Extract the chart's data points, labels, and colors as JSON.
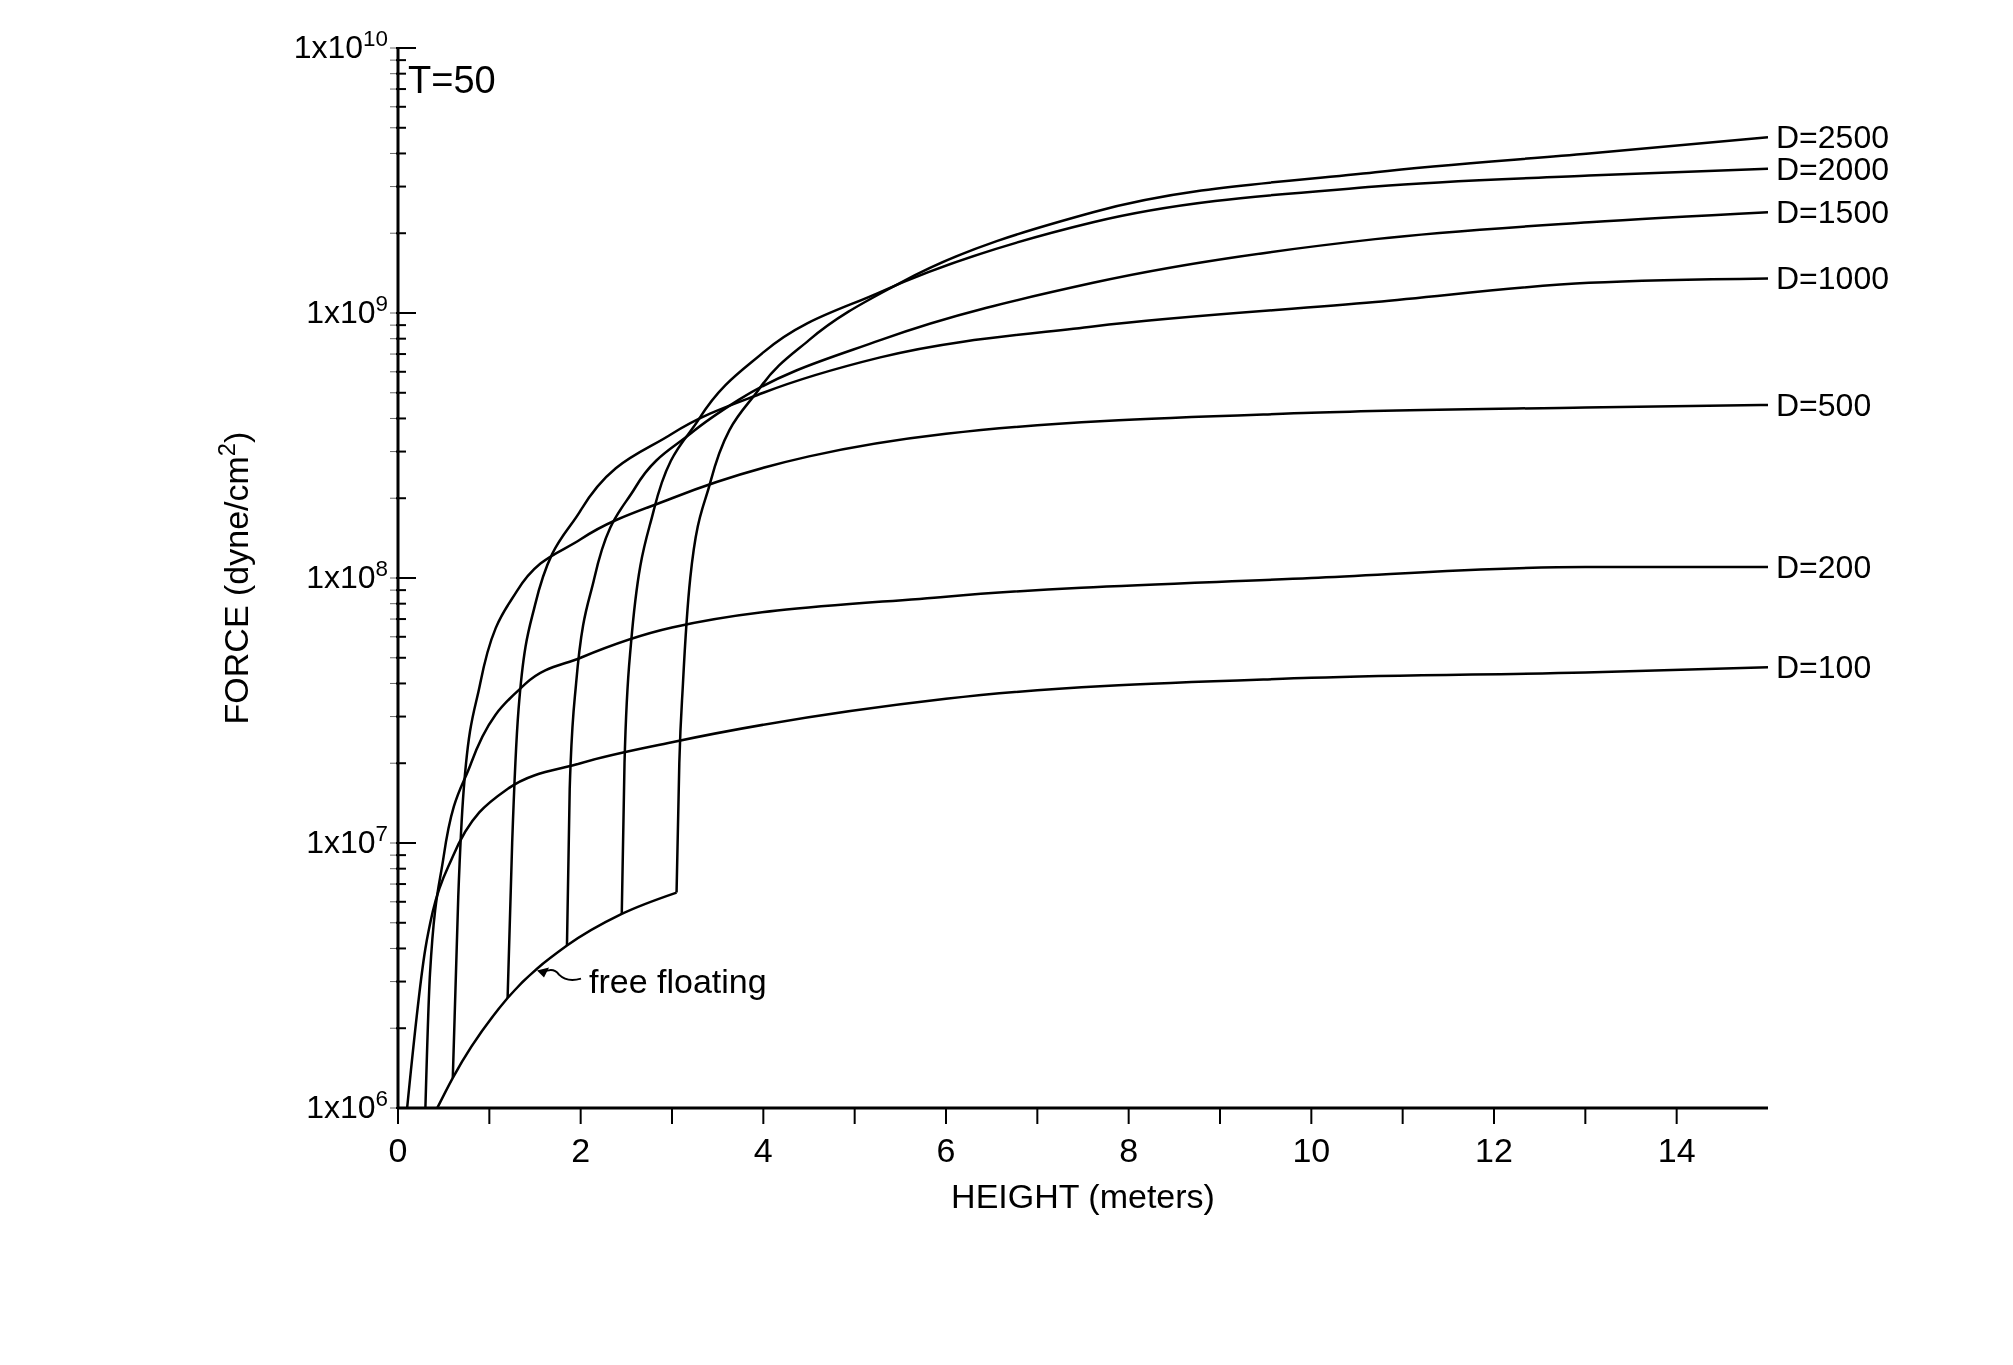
{
  "chart_data": {
    "type": "line",
    "title": "T=50",
    "xlabel": "HEIGHT (meters)",
    "ylabel": "FORCE (dyne/cm$^{2}$)",
    "log": "y",
    "grid": false,
    "annotations": [
      {
        "text": "free floating",
        "x": 1.5,
        "y": 3300000
      }
    ],
    "marker": "none",
    "line_style": "solid",
    "xlim": [
      0,
      15
    ],
    "ylim": [
      1000000,
      10000000000
    ],
    "xticks": [
      0,
      {
        "value": 1,
        "label": null
      },
      2,
      {
        "value": 3,
        "label": null
      },
      4,
      {
        "value": 5,
        "label": null
      },
      6,
      {
        "value": 7,
        "label": null
      },
      8,
      {
        "value": 9,
        "label": null
      },
      10,
      {
        "value": 11,
        "label": null
      },
      12,
      {
        "value": 13,
        "label": null
      },
      14
    ],
    "yticks": [
      {
        "value": 1000000,
        "label": "1x10$^{6}$"
      },
      {
        "value": 2000000,
        "label": null
      },
      {
        "value": 3000000,
        "label": null
      },
      {
        "value": 4000000,
        "label": null
      },
      {
        "value": 5000000,
        "label": null
      },
      {
        "value": 6000000,
        "label": null
      },
      {
        "value": 7000000,
        "label": null
      },
      {
        "value": 8000000,
        "label": null
      },
      {
        "value": 9000000,
        "label": null
      },
      {
        "value": 10000000,
        "label": "1x10$^{7}$"
      },
      {
        "value": 20000000,
        "label": null
      },
      {
        "value": 30000000,
        "label": null
      },
      {
        "value": 40000000,
        "label": null
      },
      {
        "value": 50000000,
        "label": null
      },
      {
        "value": 60000000,
        "label": null
      },
      {
        "value": 70000000,
        "label": null
      },
      {
        "value": 80000000,
        "label": null
      },
      {
        "value": 90000000,
        "label": null
      },
      {
        "value": 100000000,
        "label": "1x10$^{8}$"
      },
      {
        "value": 200000000,
        "label": null
      },
      {
        "value": 300000000,
        "label": null
      },
      {
        "value": 400000000,
        "label": null
      },
      {
        "value": 500000000,
        "label": null
      },
      {
        "value": 600000000,
        "label": null
      },
      {
        "value": 700000000,
        "label": null
      },
      {
        "value": 800000000,
        "label": null
      },
      {
        "value": 900000000,
        "label": null
      },
      {
        "value": 1000000000,
        "label": "1x10$^{9}$"
      },
      {
        "value": 2000000000,
        "label": null
      },
      {
        "value": 3000000000,
        "label": null
      },
      {
        "value": 4000000000,
        "label": null
      },
      {
        "value": 5000000000,
        "label": null
      },
      {
        "value": 6000000000,
        "label": null
      },
      {
        "value": 7000000000,
        "label": null
      },
      {
        "value": 8000000000,
        "label": null
      },
      {
        "value": 9000000000,
        "label": null
      },
      {
        "value": 10000000000,
        "label": "1x10$^{10}$"
      }
    ],
    "series": [
      {
        "name": "D=2500",
        "color": "#000000",
        "x": [
          3.05,
          3.08,
          3.12,
          3.2,
          3.42,
          3.96,
          4.5,
          5.5,
          7.61,
          10.7,
          13.04,
          15
        ],
        "values": [
          6500000,
          20000000,
          40000000,
          100000000,
          230000000,
          520000000,
          790000000,
          1300000000,
          2400000000,
          3400000000,
          4000000000,
          4600000000
        ]
      },
      {
        "name": "D=2000",
        "color": "#000000",
        "x": [
          2.45,
          2.48,
          2.55,
          2.8,
          3.3,
          4,
          5.28,
          7.61,
          10.7,
          13.04,
          15
        ],
        "values": [
          5400000,
          20000000,
          56000000,
          180000000,
          400000000,
          710000000,
          1200000000,
          2200000000,
          3000000000,
          3300000000,
          3500000000
        ]
      },
      {
        "name": "D=1500",
        "color": "#000000",
        "x": [
          1.85,
          1.88,
          1.95,
          2.15,
          2.6,
          3.2,
          3.73,
          5.28,
          7.61,
          10.7,
          13.04,
          15
        ],
        "values": [
          4100000,
          16000000,
          40000000,
          100000000,
          220000000,
          350000000,
          470000000,
          790000000,
          1300000000,
          1900000000,
          2200000000,
          2400000000
        ]
      },
      {
        "name": "D=1000",
        "color": "#000000",
        "x": [
          1.2,
          1.25,
          1.32,
          1.5,
          2,
          3,
          4,
          5.28,
          7.61,
          10.7,
          13.04,
          15
        ],
        "values": [
          2600000,
          10000000,
          32000000,
          79000000,
          180000000,
          350000000,
          500000000,
          680000000,
          890000000,
          1100000000,
          1300000000,
          1350000000
        ]
      },
      {
        "name": "D=500",
        "color": "#000000",
        "x": [
          0.6,
          0.66,
          0.72,
          0.9,
          1.3,
          2,
          3,
          6,
          10,
          13,
          15
        ],
        "values": [
          1300000,
          6300000,
          16000000,
          40000000,
          89000000,
          140000000,
          200000000,
          350000000,
          420000000,
          440000000,
          450000000
        ]
      },
      {
        "name": "D=200",
        "color": "#000000",
        "x": [
          0.3,
          0.35,
          0.5,
          0.8,
          1.4,
          2,
          3,
          6,
          10,
          13,
          15
        ],
        "values": [
          1000000,
          3200000,
          8900000,
          20000000,
          40000000,
          50000000,
          65000000,
          85000000,
          100000000,
          110000000,
          110000000
        ]
      },
      {
        "name": "D=100",
        "color": "#000000",
        "x": [
          0.1,
          0.3,
          0.38,
          0.6,
          1.2,
          2,
          3,
          6,
          10,
          13,
          15
        ],
        "values": [
          1000000,
          4000000,
          5500000,
          8900000,
          16000000,
          20000000,
          24000000,
          35000000,
          42000000,
          44000000,
          46000000
        ]
      },
      {
        "color": "#000000",
        "x": [
          0.43,
          0.6,
          1.2,
          1.85,
          2.45,
          3.05
        ],
        "values": [
          1000000,
          1300000,
          2600000,
          4100000,
          5400000,
          6500000
        ]
      }
    ]
  }
}
